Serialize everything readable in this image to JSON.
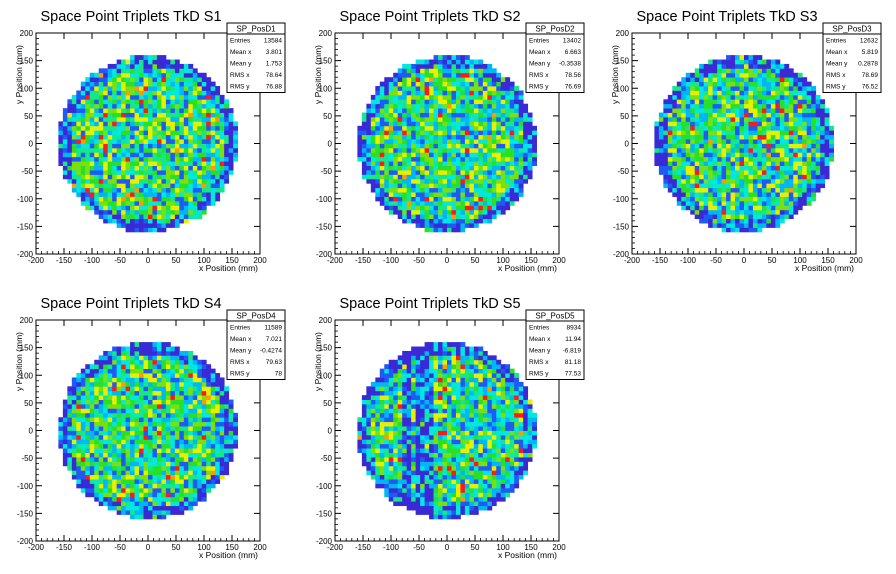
{
  "chart_data": [
    {
      "type": "heatmap",
      "title": "Space Point Triplets TkD S1",
      "xlabel": "x Position (mm)",
      "ylabel": "y Position (mm)",
      "xlim": [
        -200,
        200
      ],
      "ylim": [
        -200,
        200
      ],
      "xticks": [
        -200,
        -150,
        -100,
        -50,
        0,
        50,
        100,
        150,
        200
      ],
      "yticks": [
        -200,
        -150,
        -100,
        -50,
        0,
        50,
        100,
        150,
        200
      ],
      "radius": 160,
      "seed": 11,
      "stats": {
        "name": "SP_PosD1",
        "rows": [
          [
            "Entries",
            "13584"
          ],
          [
            "Mean x",
            "3.801"
          ],
          [
            "Mean y",
            "1.753"
          ],
          [
            "RMS x",
            "78.64"
          ],
          [
            "RMS y",
            "76.88"
          ]
        ]
      }
    },
    {
      "type": "heatmap",
      "title": "Space Point Triplets TkD S2",
      "xlabel": "x Position (mm)",
      "ylabel": "y Position (mm)",
      "xlim": [
        -200,
        200
      ],
      "ylim": [
        -200,
        200
      ],
      "xticks": [
        -200,
        -150,
        -100,
        -50,
        0,
        50,
        100,
        150,
        200
      ],
      "yticks": [
        -200,
        -150,
        -100,
        -50,
        0,
        50,
        100,
        150,
        200
      ],
      "radius": 160,
      "seed": 23,
      "stats": {
        "name": "SP_PosD2",
        "rows": [
          [
            "Entries",
            "13402"
          ],
          [
            "Mean x",
            "6.663"
          ],
          [
            "Mean y",
            "-0.3538"
          ],
          [
            "RMS x",
            "78.56"
          ],
          [
            "RMS y",
            "76.69"
          ]
        ]
      }
    },
    {
      "type": "heatmap",
      "title": "Space Point Triplets TkD S3",
      "xlabel": "x Position (mm)",
      "ylabel": "y Position (mm)",
      "xlim": [
        -200,
        200
      ],
      "ylim": [
        -200,
        200
      ],
      "xticks": [
        -200,
        -150,
        -100,
        -50,
        0,
        50,
        100,
        150,
        200
      ],
      "yticks": [
        -200,
        -150,
        -100,
        -50,
        0,
        50,
        100,
        150,
        200
      ],
      "radius": 160,
      "seed": 37,
      "stats": {
        "name": "SP_PosD3",
        "rows": [
          [
            "Entries",
            "12632"
          ],
          [
            "Mean x",
            "5.819"
          ],
          [
            "Mean y",
            "0.2878"
          ],
          [
            "RMS x",
            "78.69"
          ],
          [
            "RMS y",
            "76.52"
          ]
        ]
      }
    },
    {
      "type": "heatmap",
      "title": "Space Point Triplets TkD S4",
      "xlabel": "x Position (mm)",
      "ylabel": "y Position (mm)",
      "xlim": [
        -200,
        200
      ],
      "ylim": [
        -200,
        200
      ],
      "xticks": [
        -200,
        -150,
        -100,
        -50,
        0,
        50,
        100,
        150,
        200
      ],
      "yticks": [
        -200,
        -150,
        -100,
        -50,
        0,
        50,
        100,
        150,
        200
      ],
      "radius": 160,
      "seed": 53,
      "stats": {
        "name": "SP_PosD4",
        "rows": [
          [
            "Entries",
            "11589"
          ],
          [
            "Mean x",
            "7.021"
          ],
          [
            "Mean y",
            "-0.4274"
          ],
          [
            "RMS x",
            "79.63"
          ],
          [
            "RMS y",
            "78"
          ]
        ]
      }
    },
    {
      "type": "heatmap",
      "title": "Space Point Triplets TkD S5",
      "xlabel": "x Position (mm)",
      "ylabel": "y Position (mm)",
      "xlim": [
        -200,
        200
      ],
      "ylim": [
        -200,
        200
      ],
      "xticks": [
        -200,
        -150,
        -100,
        -50,
        0,
        50,
        100,
        150,
        200
      ],
      "yticks": [
        -200,
        -150,
        -100,
        -50,
        0,
        50,
        100,
        150,
        200
      ],
      "radius": 160,
      "seed": 71,
      "low_columns": [
        -70,
        -50,
        -30
      ],
      "stats": {
        "name": "SP_PosD5",
        "rows": [
          [
            "Entries",
            "8934"
          ],
          [
            "Mean x",
            "11.94"
          ],
          [
            "Mean y",
            "-6.819"
          ],
          [
            "RMS x",
            "81.18"
          ],
          [
            "RMS y",
            "77.53"
          ]
        ]
      }
    }
  ],
  "palette": [
    "#3a2ad6",
    "#1f5af5",
    "#00b7f5",
    "#00e8e0",
    "#14e88a",
    "#28e028",
    "#7ae010",
    "#e8f000",
    "#ff9a00",
    "#ff1a1a"
  ]
}
